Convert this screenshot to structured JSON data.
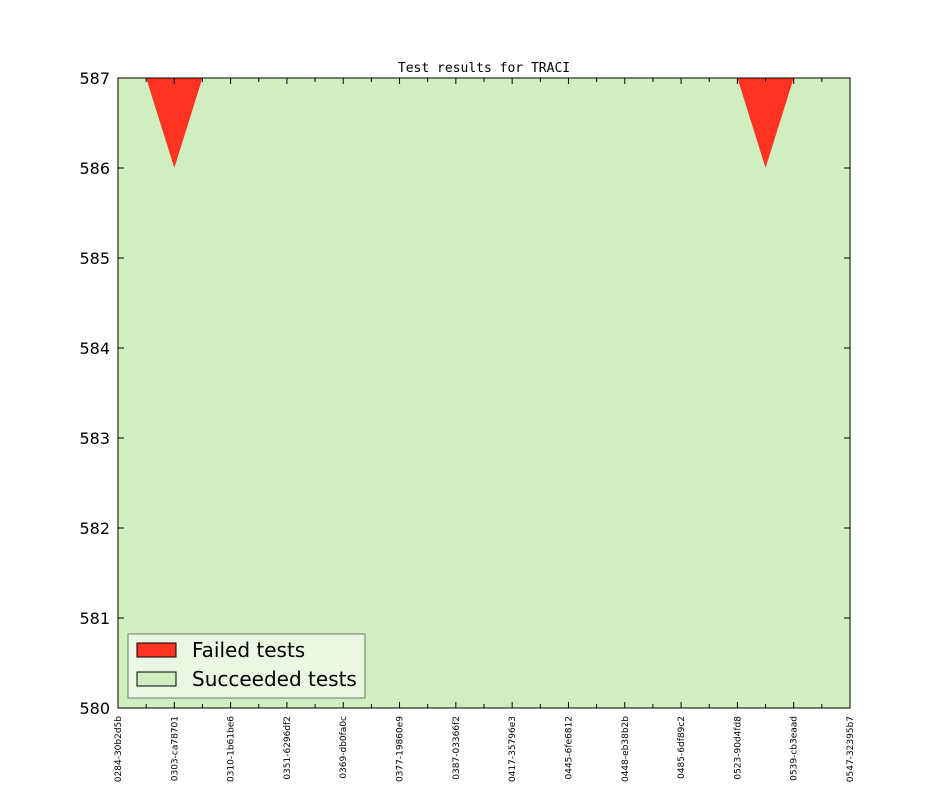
{
  "chart_data": {
    "type": "area",
    "title": "Test results for TRACI",
    "xlabel": "",
    "ylabel": "",
    "ylim": [
      580,
      587
    ],
    "yticks": [
      580,
      581,
      582,
      583,
      584,
      585,
      586,
      587
    ],
    "xticks_major": [
      "0284-30b2d5b",
      "0303-ca78701",
      "0310-1b61be6",
      "0351-6296df2",
      "0369-db0fa0c",
      "0377-19860e9",
      "0387-03366f2",
      "0417-35796e3",
      "0445-6fe6812",
      "0448-eb38b2b",
      "0485-6df89c2",
      "0523-90d4fd8",
      "0539-cb3eaad",
      "0547-32395b7"
    ],
    "series": [
      {
        "name": "Failed tests",
        "color": "#ff3322",
        "values": [
          0,
          0,
          1,
          0,
          0,
          0,
          0,
          0,
          0,
          0,
          0,
          0,
          0,
          0,
          0,
          0,
          0,
          0,
          0,
          0,
          0,
          0,
          0,
          1,
          0,
          0,
          0
        ]
      },
      {
        "name": "Succeeded tests",
        "color": "#d0eec0",
        "values": [
          587,
          587,
          586,
          587,
          587,
          587,
          587,
          587,
          587,
          587,
          587,
          587,
          587,
          587,
          587,
          587,
          587,
          587,
          587,
          587,
          587,
          587,
          587,
          586,
          587,
          587,
          587
        ]
      }
    ],
    "legend": {
      "position": "lower-left"
    },
    "grid": false
  }
}
